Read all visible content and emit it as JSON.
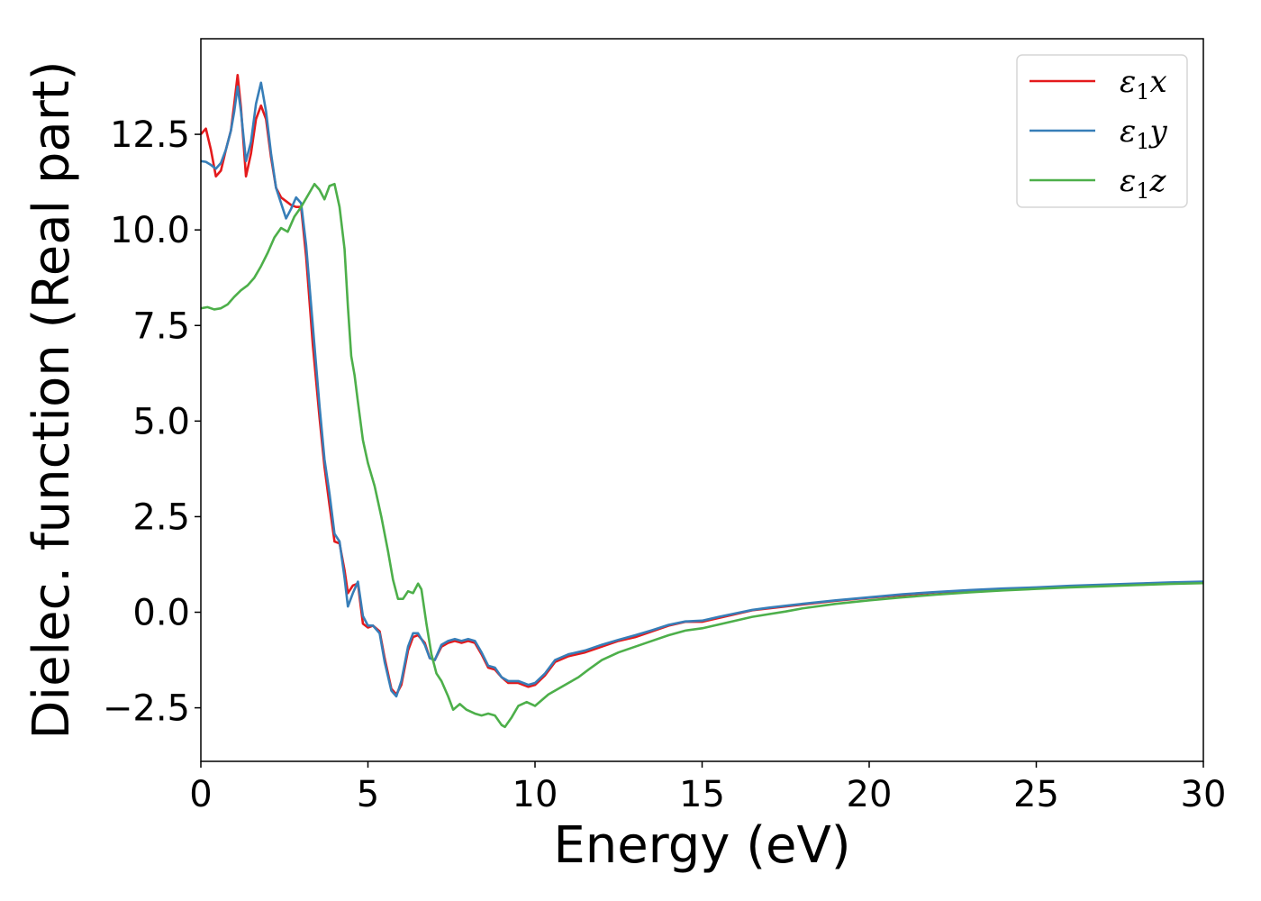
{
  "chart_data": {
    "type": "line",
    "xlabel": "Energy (eV)",
    "ylabel": "Dielec. function (Real part)",
    "xlim": [
      0,
      30
    ],
    "ylim": [
      -3.9,
      15.0
    ],
    "x_ticks": [
      0,
      5,
      10,
      15,
      20,
      25,
      30
    ],
    "y_ticks": [
      -2.5,
      0.0,
      2.5,
      5.0,
      7.5,
      10.0,
      12.5
    ],
    "x_tick_labels": [
      "0",
      "5",
      "10",
      "15",
      "20",
      "25",
      "30"
    ],
    "y_tick_labels": [
      "−2.5",
      "0.0",
      "2.5",
      "5.0",
      "7.5",
      "10.0",
      "12.5"
    ],
    "grid": false,
    "legend_position": "top-right",
    "series": [
      {
        "name": "ε1x",
        "legend_main": "ε",
        "legend_sub": "1",
        "legend_suffix": "x",
        "color": "#e41a1c",
        "points": [
          [
            0,
            12.5
          ],
          [
            0.15,
            12.65
          ],
          [
            0.3,
            12.1
          ],
          [
            0.45,
            11.4
          ],
          [
            0.6,
            11.55
          ],
          [
            0.75,
            12.1
          ],
          [
            0.9,
            12.6
          ],
          [
            1.0,
            13.3
          ],
          [
            1.1,
            14.05
          ],
          [
            1.2,
            13.2
          ],
          [
            1.35,
            11.4
          ],
          [
            1.5,
            12.0
          ],
          [
            1.65,
            12.9
          ],
          [
            1.8,
            13.25
          ],
          [
            1.95,
            12.9
          ],
          [
            2.1,
            11.9
          ],
          [
            2.25,
            11.1
          ],
          [
            2.4,
            10.85
          ],
          [
            2.55,
            10.75
          ],
          [
            2.7,
            10.65
          ],
          [
            2.85,
            10.6
          ],
          [
            3.0,
            10.6
          ],
          [
            3.15,
            9.3
          ],
          [
            3.35,
            7.0
          ],
          [
            3.55,
            5.1
          ],
          [
            3.7,
            3.8
          ],
          [
            3.85,
            2.8
          ],
          [
            4.0,
            1.85
          ],
          [
            4.15,
            1.8
          ],
          [
            4.3,
            1.1
          ],
          [
            4.4,
            0.5
          ],
          [
            4.55,
            0.7
          ],
          [
            4.7,
            0.75
          ],
          [
            4.85,
            -0.3
          ],
          [
            5.0,
            -0.4
          ],
          [
            5.15,
            -0.35
          ],
          [
            5.35,
            -0.5
          ],
          [
            5.5,
            -1.2
          ],
          [
            5.7,
            -2.0
          ],
          [
            5.85,
            -2.15
          ],
          [
            6.0,
            -1.9
          ],
          [
            6.2,
            -1.0
          ],
          [
            6.35,
            -0.65
          ],
          [
            6.5,
            -0.6
          ],
          [
            6.7,
            -0.8
          ],
          [
            6.85,
            -1.2
          ],
          [
            7.0,
            -1.25
          ],
          [
            7.2,
            -0.9
          ],
          [
            7.4,
            -0.8
          ],
          [
            7.6,
            -0.75
          ],
          [
            7.8,
            -0.8
          ],
          [
            8.0,
            -0.75
          ],
          [
            8.2,
            -0.8
          ],
          [
            8.4,
            -1.1
          ],
          [
            8.6,
            -1.45
          ],
          [
            8.8,
            -1.5
          ],
          [
            9.0,
            -1.7
          ],
          [
            9.2,
            -1.85
          ],
          [
            9.5,
            -1.85
          ],
          [
            9.8,
            -1.95
          ],
          [
            10.0,
            -1.9
          ],
          [
            10.3,
            -1.65
          ],
          [
            10.6,
            -1.3
          ],
          [
            11.0,
            -1.15
          ],
          [
            11.5,
            -1.05
          ],
          [
            12.0,
            -0.9
          ],
          [
            12.5,
            -0.75
          ],
          [
            13.0,
            -0.65
          ],
          [
            13.5,
            -0.5
          ],
          [
            14.0,
            -0.35
          ],
          [
            14.5,
            -0.25
          ],
          [
            15.0,
            -0.25
          ],
          [
            15.5,
            -0.15
          ],
          [
            16.0,
            -0.05
          ],
          [
            16.5,
            0.05
          ],
          [
            17.0,
            0.1
          ],
          [
            17.5,
            0.15
          ],
          [
            18.0,
            0.2
          ],
          [
            19.0,
            0.3
          ],
          [
            20.0,
            0.38
          ],
          [
            21.0,
            0.45
          ],
          [
            22.0,
            0.52
          ],
          [
            23.0,
            0.56
          ],
          [
            24.0,
            0.6
          ],
          [
            25.0,
            0.63
          ],
          [
            26.0,
            0.67
          ],
          [
            27.0,
            0.7
          ],
          [
            28.0,
            0.73
          ],
          [
            29.0,
            0.76
          ],
          [
            30.0,
            0.78
          ]
        ]
      },
      {
        "name": "ε1y",
        "legend_main": "ε",
        "legend_sub": "1",
        "legend_suffix": "y",
        "color": "#377eb8",
        "points": [
          [
            0,
            11.8
          ],
          [
            0.15,
            11.78
          ],
          [
            0.3,
            11.7
          ],
          [
            0.45,
            11.6
          ],
          [
            0.6,
            11.75
          ],
          [
            0.75,
            12.1
          ],
          [
            0.9,
            12.6
          ],
          [
            1.0,
            13.1
          ],
          [
            1.1,
            13.75
          ],
          [
            1.2,
            13.1
          ],
          [
            1.35,
            11.8
          ],
          [
            1.5,
            12.3
          ],
          [
            1.65,
            13.3
          ],
          [
            1.8,
            13.85
          ],
          [
            1.95,
            13.1
          ],
          [
            2.1,
            12.0
          ],
          [
            2.25,
            11.1
          ],
          [
            2.4,
            10.7
          ],
          [
            2.55,
            10.3
          ],
          [
            2.7,
            10.55
          ],
          [
            2.85,
            10.85
          ],
          [
            3.0,
            10.7
          ],
          [
            3.15,
            9.6
          ],
          [
            3.35,
            7.5
          ],
          [
            3.55,
            5.4
          ],
          [
            3.7,
            4.0
          ],
          [
            3.85,
            3.1
          ],
          [
            4.0,
            2.05
          ],
          [
            4.15,
            1.85
          ],
          [
            4.3,
            0.9
          ],
          [
            4.4,
            0.15
          ],
          [
            4.55,
            0.5
          ],
          [
            4.7,
            0.8
          ],
          [
            4.85,
            -0.1
          ],
          [
            5.0,
            -0.35
          ],
          [
            5.15,
            -0.35
          ],
          [
            5.35,
            -0.55
          ],
          [
            5.5,
            -1.3
          ],
          [
            5.7,
            -2.05
          ],
          [
            5.85,
            -2.2
          ],
          [
            6.0,
            -1.8
          ],
          [
            6.2,
            -0.9
          ],
          [
            6.35,
            -0.55
          ],
          [
            6.5,
            -0.55
          ],
          [
            6.7,
            -0.85
          ],
          [
            6.85,
            -1.2
          ],
          [
            7.0,
            -1.25
          ],
          [
            7.2,
            -0.85
          ],
          [
            7.4,
            -0.75
          ],
          [
            7.6,
            -0.7
          ],
          [
            7.8,
            -0.75
          ],
          [
            8.0,
            -0.7
          ],
          [
            8.2,
            -0.75
          ],
          [
            8.4,
            -1.05
          ],
          [
            8.6,
            -1.4
          ],
          [
            8.8,
            -1.45
          ],
          [
            9.0,
            -1.7
          ],
          [
            9.2,
            -1.8
          ],
          [
            9.5,
            -1.8
          ],
          [
            9.8,
            -1.9
          ],
          [
            10.0,
            -1.85
          ],
          [
            10.3,
            -1.6
          ],
          [
            10.6,
            -1.25
          ],
          [
            11.0,
            -1.1
          ],
          [
            11.5,
            -1.0
          ],
          [
            12.0,
            -0.85
          ],
          [
            12.5,
            -0.72
          ],
          [
            13.0,
            -0.6
          ],
          [
            13.5,
            -0.47
          ],
          [
            14.0,
            -0.33
          ],
          [
            14.5,
            -0.24
          ],
          [
            15.0,
            -0.22
          ],
          [
            15.5,
            -0.12
          ],
          [
            16.0,
            -0.03
          ],
          [
            16.5,
            0.06
          ],
          [
            17.0,
            0.12
          ],
          [
            17.5,
            0.17
          ],
          [
            18.0,
            0.22
          ],
          [
            19.0,
            0.31
          ],
          [
            20.0,
            0.39
          ],
          [
            21.0,
            0.47
          ],
          [
            22.0,
            0.53
          ],
          [
            23.0,
            0.58
          ],
          [
            24.0,
            0.62
          ],
          [
            25.0,
            0.65
          ],
          [
            26.0,
            0.69
          ],
          [
            27.0,
            0.72
          ],
          [
            28.0,
            0.75
          ],
          [
            29.0,
            0.78
          ],
          [
            30.0,
            0.8
          ]
        ]
      },
      {
        "name": "ε1z",
        "legend_main": "ε",
        "legend_sub": "1",
        "legend_suffix": "z",
        "color": "#4daf4a",
        "points": [
          [
            0,
            7.95
          ],
          [
            0.2,
            7.98
          ],
          [
            0.4,
            7.92
          ],
          [
            0.6,
            7.95
          ],
          [
            0.8,
            8.05
          ],
          [
            1.0,
            8.25
          ],
          [
            1.2,
            8.42
          ],
          [
            1.4,
            8.55
          ],
          [
            1.6,
            8.75
          ],
          [
            1.8,
            9.05
          ],
          [
            2.0,
            9.4
          ],
          [
            2.2,
            9.8
          ],
          [
            2.4,
            10.05
          ],
          [
            2.6,
            9.95
          ],
          [
            2.8,
            10.35
          ],
          [
            3.0,
            10.6
          ],
          [
            3.2,
            10.9
          ],
          [
            3.4,
            11.2
          ],
          [
            3.55,
            11.05
          ],
          [
            3.7,
            10.8
          ],
          [
            3.85,
            11.15
          ],
          [
            4.0,
            11.2
          ],
          [
            4.15,
            10.6
          ],
          [
            4.3,
            9.5
          ],
          [
            4.4,
            8.0
          ],
          [
            4.5,
            6.7
          ],
          [
            4.6,
            6.2
          ],
          [
            4.7,
            5.5
          ],
          [
            4.85,
            4.5
          ],
          [
            5.0,
            3.9
          ],
          [
            5.2,
            3.3
          ],
          [
            5.4,
            2.5
          ],
          [
            5.6,
            1.6
          ],
          [
            5.75,
            0.85
          ],
          [
            5.9,
            0.35
          ],
          [
            6.05,
            0.35
          ],
          [
            6.2,
            0.55
          ],
          [
            6.35,
            0.5
          ],
          [
            6.5,
            0.75
          ],
          [
            6.6,
            0.6
          ],
          [
            6.75,
            -0.3
          ],
          [
            6.9,
            -1.1
          ],
          [
            7.05,
            -1.6
          ],
          [
            7.2,
            -1.8
          ],
          [
            7.4,
            -2.2
          ],
          [
            7.55,
            -2.55
          ],
          [
            7.75,
            -2.4
          ],
          [
            7.95,
            -2.55
          ],
          [
            8.2,
            -2.65
          ],
          [
            8.4,
            -2.7
          ],
          [
            8.6,
            -2.65
          ],
          [
            8.8,
            -2.7
          ],
          [
            9.0,
            -2.95
          ],
          [
            9.1,
            -3.0
          ],
          [
            9.3,
            -2.75
          ],
          [
            9.5,
            -2.45
          ],
          [
            9.75,
            -2.35
          ],
          [
            10.0,
            -2.45
          ],
          [
            10.2,
            -2.3
          ],
          [
            10.4,
            -2.15
          ],
          [
            10.7,
            -2.0
          ],
          [
            11.0,
            -1.85
          ],
          [
            11.3,
            -1.7
          ],
          [
            11.6,
            -1.5
          ],
          [
            12.0,
            -1.25
          ],
          [
            12.5,
            -1.05
          ],
          [
            13.0,
            -0.9
          ],
          [
            13.5,
            -0.75
          ],
          [
            14.0,
            -0.6
          ],
          [
            14.5,
            -0.48
          ],
          [
            15.0,
            -0.42
          ],
          [
            15.5,
            -0.32
          ],
          [
            16.0,
            -0.22
          ],
          [
            16.5,
            -0.12
          ],
          [
            17.0,
            -0.05
          ],
          [
            17.5,
            0.02
          ],
          [
            18.0,
            0.1
          ],
          [
            19.0,
            0.22
          ],
          [
            20.0,
            0.31
          ],
          [
            21.0,
            0.39
          ],
          [
            22.0,
            0.46
          ],
          [
            23.0,
            0.52
          ],
          [
            24.0,
            0.57
          ],
          [
            25.0,
            0.61
          ],
          [
            26.0,
            0.65
          ],
          [
            27.0,
            0.68
          ],
          [
            28.0,
            0.71
          ],
          [
            29.0,
            0.74
          ],
          [
            30.0,
            0.76
          ]
        ]
      }
    ]
  }
}
